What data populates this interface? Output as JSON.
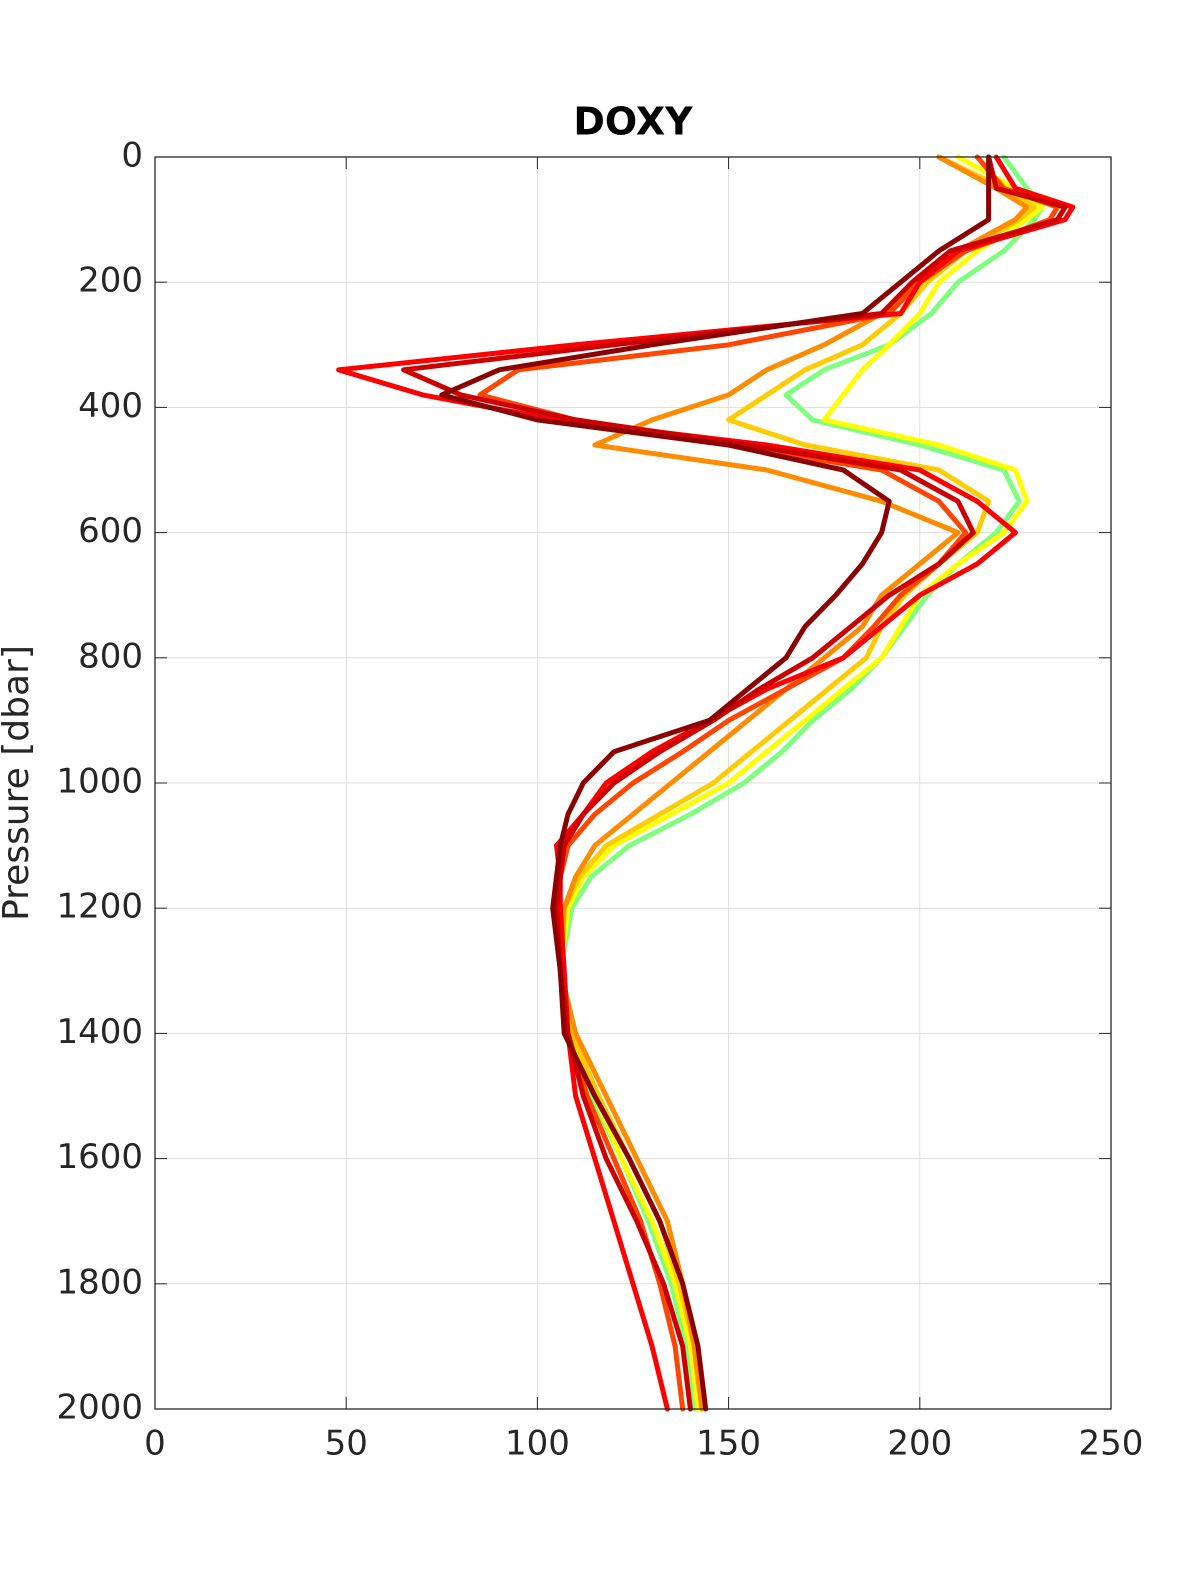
{
  "chart_data": {
    "type": "line",
    "title": "DOXY",
    "ylabel": "Pressure [dbar]",
    "xlim": [
      0,
      250
    ],
    "xticks": [
      0,
      50,
      100,
      150,
      200,
      250
    ],
    "ylim": [
      0,
      2000
    ],
    "yticks": [
      0,
      200,
      400,
      600,
      800,
      1000,
      1200,
      1400,
      1600,
      1800,
      2000
    ],
    "y_reversed": true,
    "grid": true,
    "y": [
      0,
      50,
      80,
      100,
      150,
      200,
      250,
      300,
      340,
      380,
      420,
      460,
      500,
      550,
      600,
      650,
      700,
      750,
      800,
      850,
      900,
      950,
      1000,
      1050,
      1100,
      1150,
      1200,
      1300,
      1400,
      1500,
      1600,
      1700,
      1800,
      1900,
      2000
    ],
    "series": [
      {
        "color": "#7fff7f",
        "values": [
          222,
          228,
          232,
          230,
          222,
          210,
          203,
          192,
          175,
          165,
          172,
          200,
          222,
          226,
          220,
          210,
          202,
          196,
          190,
          182,
          172,
          164,
          154,
          140,
          124,
          114,
          109,
          106,
          108,
          114,
          122,
          129,
          135,
          139,
          141
        ]
      },
      {
        "color": "#ffff00",
        "values": [
          210,
          225,
          232,
          228,
          215,
          205,
          200,
          192,
          185,
          180,
          175,
          205,
          225,
          228,
          222,
          210,
          200,
          195,
          190,
          180,
          170,
          160,
          150,
          135,
          120,
          112,
          108,
          106,
          108,
          115,
          122,
          130,
          136,
          140,
          142
        ]
      },
      {
        "color": "#ffcc00",
        "values": [
          205,
          222,
          230,
          226,
          212,
          202,
          195,
          185,
          170,
          160,
          150,
          170,
          205,
          218,
          215,
          205,
          196,
          190,
          186,
          176,
          166,
          156,
          146,
          132,
          118,
          111,
          107,
          106,
          109,
          116,
          124,
          132,
          137,
          141,
          143
        ]
      },
      {
        "color": "#ff8c00",
        "values": [
          205,
          220,
          228,
          225,
          210,
          200,
          190,
          175,
          160,
          150,
          130,
          115,
          160,
          190,
          210,
          200,
          190,
          185,
          175,
          165,
          155,
          145,
          135,
          125,
          115,
          110,
          107,
          106,
          110,
          118,
          126,
          134,
          138,
          141,
          143
        ]
      },
      {
        "color": "#ff4500",
        "values": [
          215,
          222,
          236,
          234,
          212,
          200,
          192,
          150,
          95,
          85,
          110,
          150,
          190,
          205,
          212,
          205,
          195,
          188,
          180,
          165,
          150,
          138,
          125,
          115,
          108,
          106,
          105,
          106,
          108,
          113,
          120,
          127,
          132,
          136,
          138
        ]
      },
      {
        "color": "#ff0000",
        "values": [
          220,
          225,
          240,
          238,
          210,
          200,
          195,
          110,
          48,
          70,
          105,
          160,
          200,
          215,
          225,
          215,
          200,
          190,
          180,
          160,
          145,
          130,
          118,
          112,
          105,
          106,
          106,
          107,
          108,
          110,
          115,
          120,
          125,
          130,
          134
        ]
      },
      {
        "color": "#cc0000",
        "values": [
          218,
          220,
          238,
          236,
          208,
          198,
          190,
          120,
          65,
          80,
          110,
          155,
          195,
          210,
          214,
          205,
          192,
          182,
          172,
          158,
          146,
          132,
          120,
          112,
          107,
          106,
          105,
          106,
          108,
          112,
          118,
          126,
          133,
          138,
          140
        ]
      },
      {
        "color": "#8b0000",
        "values": [
          218,
          218,
          218,
          218,
          205,
          195,
          185,
          130,
          90,
          75,
          100,
          150,
          180,
          192,
          190,
          185,
          178,
          170,
          165,
          155,
          145,
          120,
          112,
          108,
          106,
          105,
          104,
          106,
          107,
          115,
          124,
          132,
          138,
          142,
          144
        ]
      }
    ]
  }
}
